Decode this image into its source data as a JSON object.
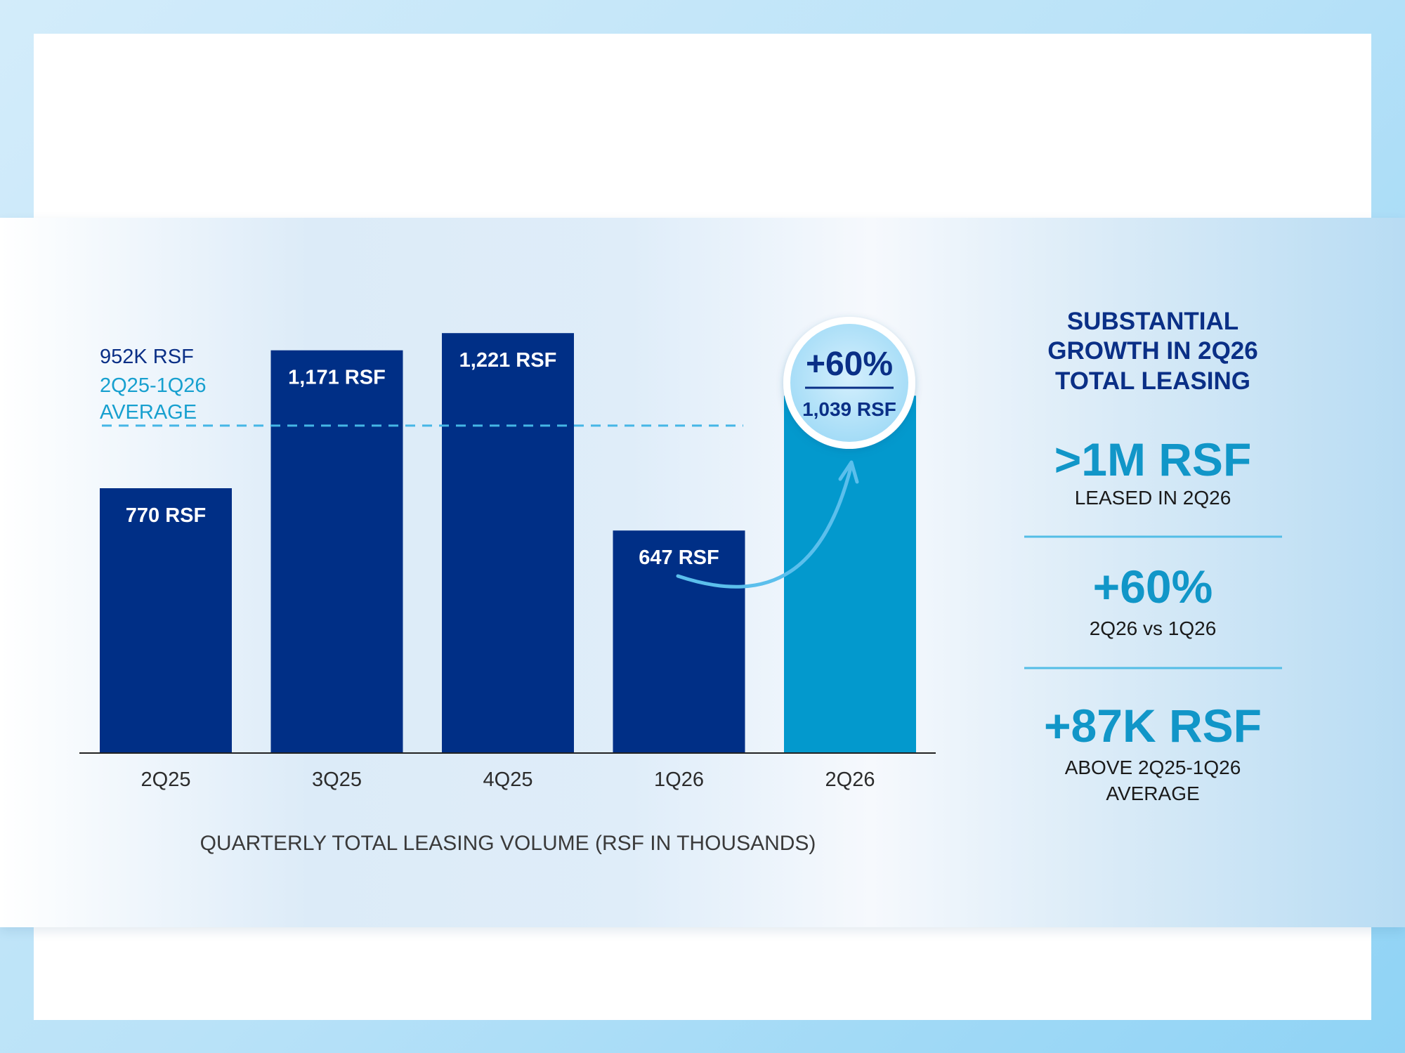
{
  "chart_data": {
    "type": "bar",
    "title": "QUARTERLY TOTAL LEASING VOLUME (RSF IN THOUSANDS)",
    "categories": [
      "2Q25",
      "3Q25",
      "4Q25",
      "1Q26",
      "2Q26"
    ],
    "values": [
      770,
      1171,
      1221,
      647,
      1039
    ],
    "data_labels": [
      "770 RSF",
      "1,171 RSF",
      "1,221 RSF",
      "647 RSF",
      "1,039 RSF"
    ],
    "ylim": [
      0,
      1250
    ],
    "grid": false,
    "reference_line": {
      "value": 952,
      "label_value": "952K RSF",
      "label_period": "2Q25-1Q26",
      "label_text": "AVERAGE"
    },
    "growth_callout": {
      "value": "+60%",
      "label": "1,039 RSF"
    },
    "colors": {
      "default_bar": "#002f86",
      "highlight_bar": "#0399cd",
      "reference_line": "#45b6e6",
      "arrow": "#5bbfec"
    }
  },
  "sidebar": {
    "title_lines": [
      "SUBSTANTIAL",
      "GROWTH IN 2Q26",
      "TOTAL LEASING"
    ],
    "stats": [
      {
        "value": ">1M RSF",
        "caption_lines": [
          "LEASED IN 2Q26"
        ]
      },
      {
        "value": "+60%",
        "caption_lines": [
          "2Q26 vs 1Q26"
        ]
      },
      {
        "value": "+87K RSF",
        "caption_lines": [
          "ABOVE 2Q25-1Q26",
          "AVERAGE"
        ]
      }
    ]
  }
}
